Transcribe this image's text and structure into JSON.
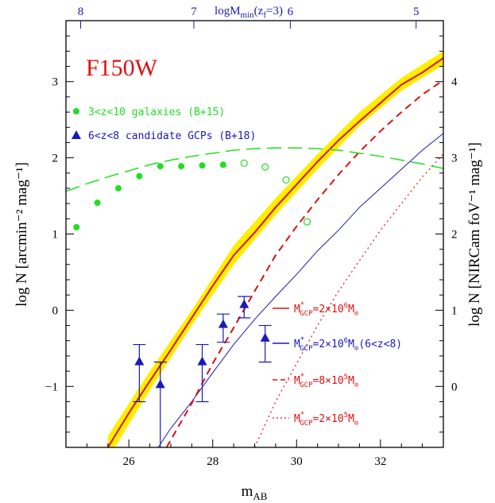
{
  "chart_data": {
    "type": "line",
    "panel_label": "F150W",
    "xlim": [
      24.5,
      33.5
    ],
    "ylim": [
      -1.8,
      3.8
    ],
    "x_ticks": [
      26,
      28,
      30,
      32
    ],
    "y_ticks": [
      -1,
      0,
      1,
      2,
      3
    ],
    "y2_offset": 1.0,
    "y2_ticks": [
      0,
      1,
      2,
      3,
      4
    ],
    "top_ticks": [
      {
        "label": "8",
        "x": 24.85
      },
      {
        "label": "7",
        "x": 27.55
      },
      {
        "label": "6",
        "x": 29.85
      },
      {
        "label": "5",
        "x": 32.85
      }
    ],
    "xlabel_main": "m",
    "xlabel_sub": "AB",
    "ylabel_left": "log N [arcmin⁻² mag⁻¹]",
    "ylabel_right": "log N [NIRCam foV⁻¹ mag⁻¹]",
    "top_label_main": "logM",
    "top_label_sub": "min",
    "top_label_paren": "(z",
    "top_label_sub2": "f",
    "top_label_end": "=3)",
    "band": {
      "color": "#ffee00",
      "x": [
        25.5,
        26.5,
        27.5,
        28.5,
        29.5,
        30.5,
        31.5,
        32.5,
        33.5
      ],
      "lower": [
        -1.95,
        -1.05,
        -0.2,
        0.6,
        1.25,
        1.85,
        2.42,
        2.88,
        3.22
      ],
      "upper": [
        -1.65,
        -0.8,
        0.0,
        0.85,
        1.47,
        2.05,
        2.6,
        3.05,
        3.4
      ]
    },
    "series": [
      {
        "name": "M*GCP=2×10⁶M⊙",
        "color": "#e01010",
        "style": "solid",
        "width": 2,
        "x": [
          25.5,
          26.0,
          26.5,
          27.0,
          27.5,
          28.0,
          28.5,
          29.0,
          29.5,
          30.0,
          30.5,
          31.0,
          31.5,
          32.0,
          32.5,
          33.0,
          33.5
        ],
        "y": [
          -1.8,
          -1.35,
          -0.93,
          -0.52,
          -0.1,
          0.32,
          0.72,
          1.02,
          1.35,
          1.65,
          1.95,
          2.23,
          2.48,
          2.72,
          2.96,
          3.12,
          3.31
        ]
      },
      {
        "name": "M*GCP=2×10⁶M⊙(6<z<8)",
        "color": "#1a1ab8",
        "style": "solid",
        "width": 1,
        "x": [
          26.7,
          27.0,
          27.5,
          28.0,
          28.5,
          29.0,
          29.5,
          30.0,
          30.5,
          31.0,
          31.5,
          32.0,
          32.5,
          33.0,
          33.5
        ],
        "y": [
          -1.8,
          -1.55,
          -1.2,
          -0.82,
          -0.45,
          -0.12,
          0.18,
          0.47,
          0.78,
          1.05,
          1.35,
          1.6,
          1.85,
          2.1,
          2.32
        ]
      },
      {
        "name": "M*GCP=8×10⁵M⊙",
        "color": "#e01010",
        "style": "dashed",
        "width": 2,
        "x": [
          26.9,
          27.5,
          28.0,
          28.5,
          29.0,
          29.5,
          30.0,
          30.5,
          31.0,
          31.5,
          32.0,
          32.5,
          33.0,
          33.5
        ],
        "y": [
          -1.8,
          -1.22,
          -0.7,
          -0.23,
          0.25,
          0.72,
          1.1,
          1.45,
          1.78,
          2.08,
          2.35,
          2.6,
          2.83,
          3.02
        ]
      },
      {
        "name": "M*GCP=2×10⁵M⊙",
        "color": "#e01010",
        "style": "dotted",
        "width": 1.2,
        "x": [
          29.0,
          29.5,
          30.0,
          30.5,
          31.0,
          31.5,
          32.0,
          32.5,
          33.0,
          33.5
        ],
        "y": [
          -1.8,
          -1.2,
          -0.7,
          -0.2,
          0.25,
          0.65,
          1.05,
          1.4,
          1.75,
          2.05
        ]
      },
      {
        "name": "",
        "color": "#22dd22",
        "style": "longdash",
        "width": 1.5,
        "x": [
          24.5,
          25.0,
          25.5,
          26.0,
          26.5,
          27.0,
          27.5,
          28.0,
          28.5,
          29.0,
          29.5,
          30.0,
          30.5,
          31.0,
          31.5,
          32.0,
          32.5,
          33.0,
          33.5
        ],
        "y": [
          1.56,
          1.66,
          1.75,
          1.83,
          1.91,
          1.97,
          2.02,
          2.06,
          2.1,
          2.12,
          2.13,
          2.13,
          2.12,
          2.1,
          2.06,
          2.02,
          1.97,
          1.92,
          1.86
        ]
      }
    ],
    "galaxies": {
      "name": "3<z<10 galaxies (B+15)",
      "color": "#22dd22",
      "filled": [
        [
          24.75,
          1.09
        ],
        [
          25.25,
          1.41
        ],
        [
          25.75,
          1.6
        ],
        [
          26.25,
          1.76
        ],
        [
          26.75,
          1.89
        ],
        [
          27.25,
          1.89
        ],
        [
          27.75,
          1.9
        ],
        [
          28.25,
          1.91
        ]
      ],
      "open": [
        [
          28.75,
          1.93
        ],
        [
          29.25,
          1.88
        ],
        [
          29.75,
          1.71
        ],
        [
          30.25,
          1.16
        ]
      ]
    },
    "gcps": {
      "name": "6<z<8 candidate GCPs (B+18)",
      "color": "#1a1ab8",
      "points": [
        {
          "x": 26.25,
          "y": -0.68,
          "lo": -1.2,
          "hi": -0.45
        },
        {
          "x": 26.75,
          "y": -0.98,
          "lo": -2.0,
          "hi": -0.68
        },
        {
          "x": 27.75,
          "y": -0.68,
          "lo": -1.2,
          "hi": -0.45
        },
        {
          "x": 28.25,
          "y": -0.19,
          "lo": -0.42,
          "hi": -0.05
        },
        {
          "x": 28.75,
          "y": 0.07,
          "lo": -0.1,
          "hi": 0.18
        },
        {
          "x": 29.25,
          "y": -0.37,
          "lo": -0.68,
          "hi": -0.2
        }
      ]
    }
  },
  "legend_top": {
    "galaxies_label": "3<z<10 galaxies (B+15)",
    "gcps_label": "6<z<8 candidate GCPs (B+18)"
  },
  "legend_bottom": [
    {
      "main": "M",
      "sup": "*",
      "sub": "GCP",
      "value": "=2×10",
      "exp": "6",
      "unit": "M",
      "unit_sub": "⊙",
      "extra": "",
      "color": "#e01010",
      "style": "solid"
    },
    {
      "main": "M",
      "sup": "*",
      "sub": "GCP",
      "value": "=2×10",
      "exp": "6",
      "unit": "M",
      "unit_sub": "⊙",
      "extra": "(6<z<8)",
      "color": "#1a1ab8",
      "style": "solid"
    },
    {
      "main": "M",
      "sup": "*",
      "sub": "GCP",
      "value": "=8×10",
      "exp": "5",
      "unit": "M",
      "unit_sub": "⊙",
      "extra": "",
      "color": "#e01010",
      "style": "dashed"
    },
    {
      "main": "M",
      "sup": "*",
      "sub": "GCP",
      "value": "=2×10",
      "exp": "5",
      "unit": "M",
      "unit_sub": "⊙",
      "extra": "",
      "color": "#e01010",
      "style": "dotted"
    }
  ]
}
